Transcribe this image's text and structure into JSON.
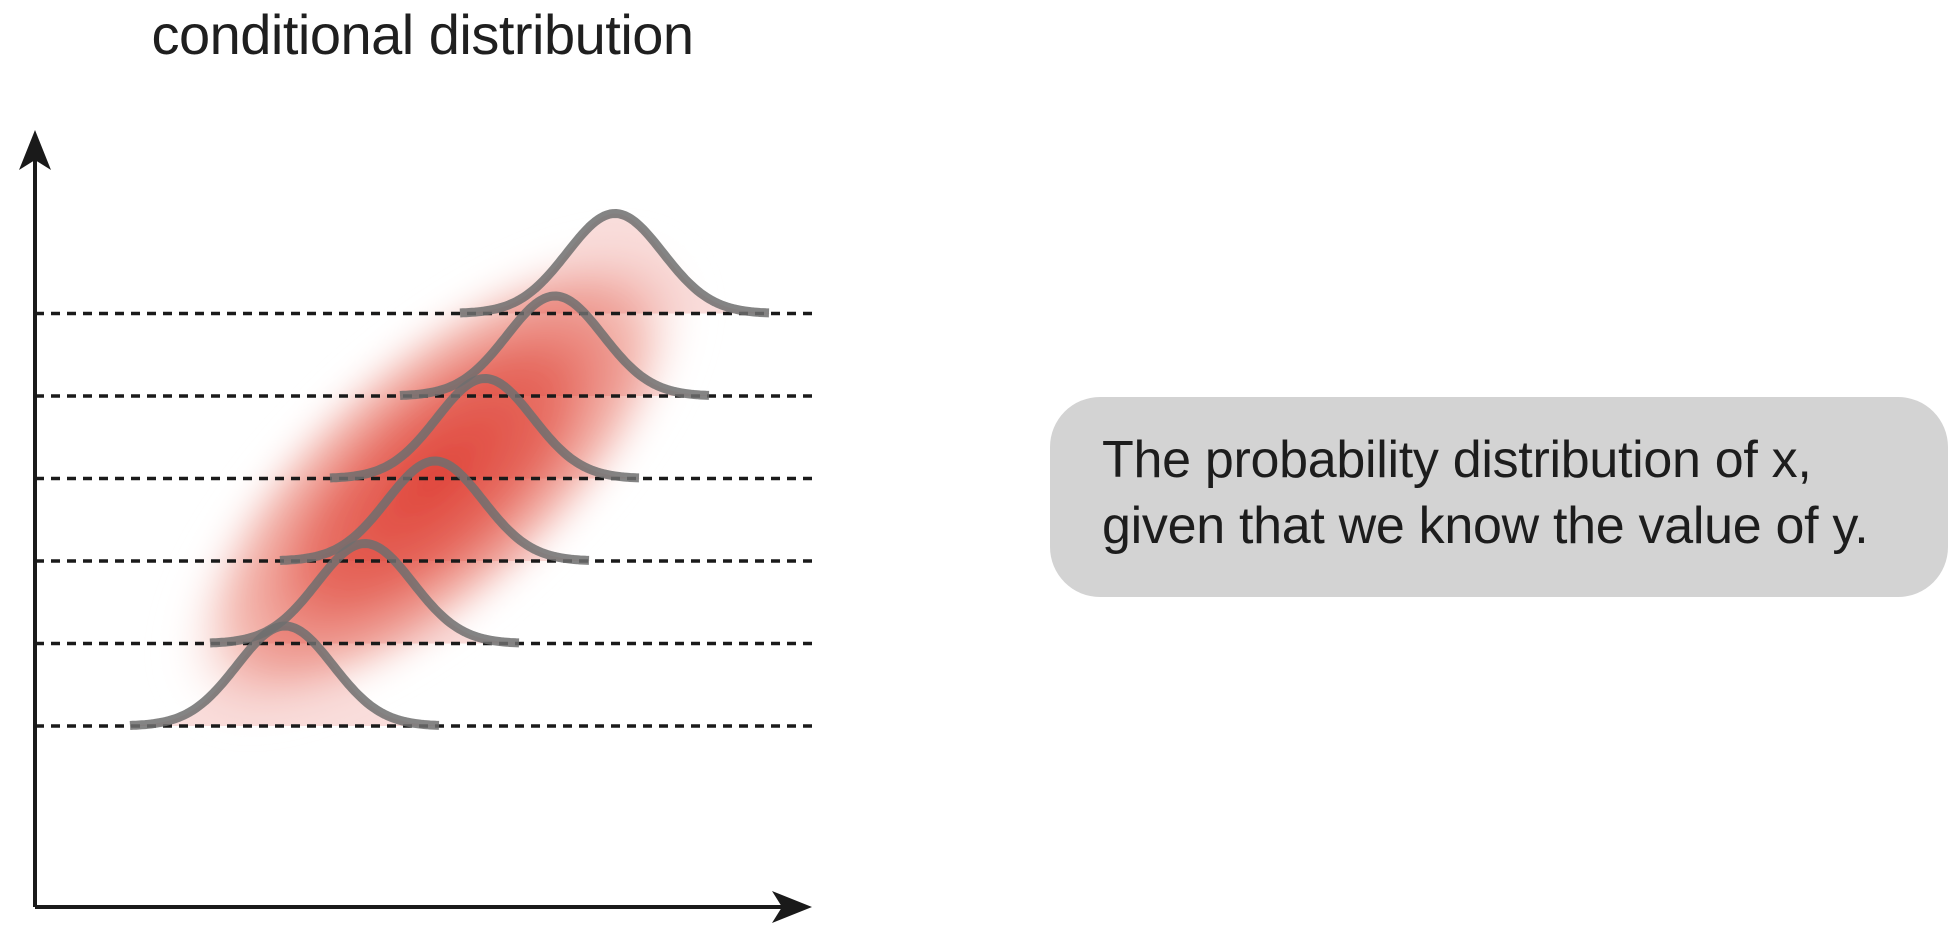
{
  "title": "conditional distribution",
  "callout": {
    "line1": "The probability distribution of x,",
    "line2": "given that we know the value of y."
  },
  "colors": {
    "density": "#e0443a",
    "curve": "#6e6e6e",
    "guide": "#1a1a1a",
    "callout_bg": "#d3d3d3"
  },
  "diagram_data": {
    "slices": [
      {
        "y_level": 1,
        "x_center": 2.5,
        "height": 1.0
      },
      {
        "y_level": 2,
        "x_center": 3.3,
        "height": 1.0
      },
      {
        "y_level": 3,
        "x_center": 4.0,
        "height": 1.0
      },
      {
        "y_level": 4,
        "x_center": 4.5,
        "height": 1.0
      },
      {
        "y_level": 5,
        "x_center": 5.2,
        "height": 1.0
      },
      {
        "y_level": 6,
        "x_center": 5.8,
        "height": 1.0
      }
    ],
    "guide_lines": "dashed"
  }
}
